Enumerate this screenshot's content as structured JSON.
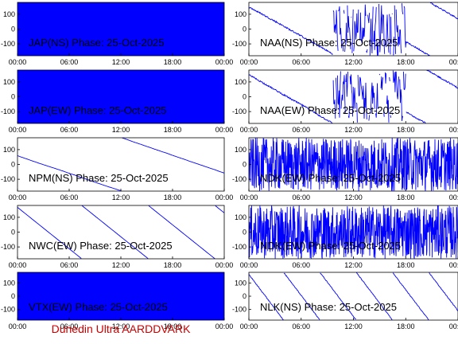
{
  "footer_text": "Dunedin Ultra AARDDVARK",
  "colors": {
    "trace": "#0000ff",
    "axis": "#000000",
    "footer": "#cc0000"
  },
  "chart_data": [
    {
      "type": "line",
      "title": "JAP(NS) Phase: 25-Oct-2025",
      "ylim": [
        -180,
        180
      ],
      "yticks": [
        100,
        0,
        -100
      ],
      "xticks": [
        "00:00",
        "06:00",
        "12:00",
        "18:00",
        "00:00"
      ],
      "style": "dense"
    },
    {
      "type": "line",
      "title": "NAA(NS) Phase: 25-Oct-2025",
      "ylim": [
        -180,
        180
      ],
      "yticks": [
        100,
        0,
        -100
      ],
      "xticks": [
        "00:00",
        "06:00",
        "12:00",
        "18:00",
        "00:00"
      ],
      "style": "sawtooth-noisy"
    },
    {
      "type": "line",
      "title": "JAP(EW) Phase: 25-Oct-2025",
      "ylim": [
        -180,
        180
      ],
      "yticks": [
        100,
        0,
        -100
      ],
      "xticks": [
        "00:00",
        "06:00",
        "12:00",
        "18:00",
        "00:00"
      ],
      "style": "dense"
    },
    {
      "type": "line",
      "title": "NAA(EW) Phase: 25-Oct-2025",
      "ylim": [
        -180,
        180
      ],
      "yticks": [
        100,
        0,
        -100
      ],
      "xticks": [
        "00:00",
        "06:00",
        "12:00",
        "18:00",
        "00:00"
      ],
      "style": "sawtooth-noisy"
    },
    {
      "type": "line",
      "title": "NPM(NS) Phase: 25-Oct-2025",
      "ylim": [
        -180,
        180
      ],
      "yticks": [
        100,
        0,
        -100
      ],
      "xticks": [
        "00:00",
        "06:00",
        "12:00",
        "18:00",
        "00:00"
      ],
      "style": "slow-sawtooth"
    },
    {
      "type": "line",
      "title": "NDK(EW) Phase: 25-Oct-2025",
      "ylim": [
        -180,
        180
      ],
      "yticks": [
        100,
        0,
        -100
      ],
      "xticks": [
        "00:00",
        "06:00",
        "12:00",
        "18:00",
        "00:00"
      ],
      "style": "very-dense"
    },
    {
      "type": "line",
      "title": "NWC(EW) Phase: 25-Oct-2025",
      "ylim": [
        -180,
        180
      ],
      "yticks": [
        100,
        0,
        -100
      ],
      "xticks": [
        "00:00",
        "06:00",
        "12:00",
        "18:00",
        "00:00"
      ],
      "style": "regular-sawtooth"
    },
    {
      "type": "line",
      "title": "NDK(EW) Phase: 25-Oct-2025",
      "ylim": [
        -180,
        180
      ],
      "yticks": [
        100,
        0,
        -100
      ],
      "xticks": [
        "00:00",
        "06:00",
        "12:00",
        "18:00",
        "00:00"
      ],
      "style": "very-dense"
    },
    {
      "type": "line",
      "title": "VTX(EW) Phase: 25-Oct-2025",
      "ylim": [
        -180,
        180
      ],
      "yticks": [
        100,
        0,
        -100
      ],
      "xticks": [
        "00:00",
        "06:00",
        "12:00",
        "18:00",
        "00:00"
      ],
      "style": "dense"
    },
    {
      "type": "line",
      "title": "NLK(NS) Phase: 25-Oct-2025",
      "ylim": [
        -180,
        180
      ],
      "yticks": [
        100,
        0,
        -100
      ],
      "xticks": [
        "00:00",
        "06:00",
        "12:00",
        "18:00",
        "00:00"
      ],
      "style": "fast-sawtooth"
    }
  ]
}
